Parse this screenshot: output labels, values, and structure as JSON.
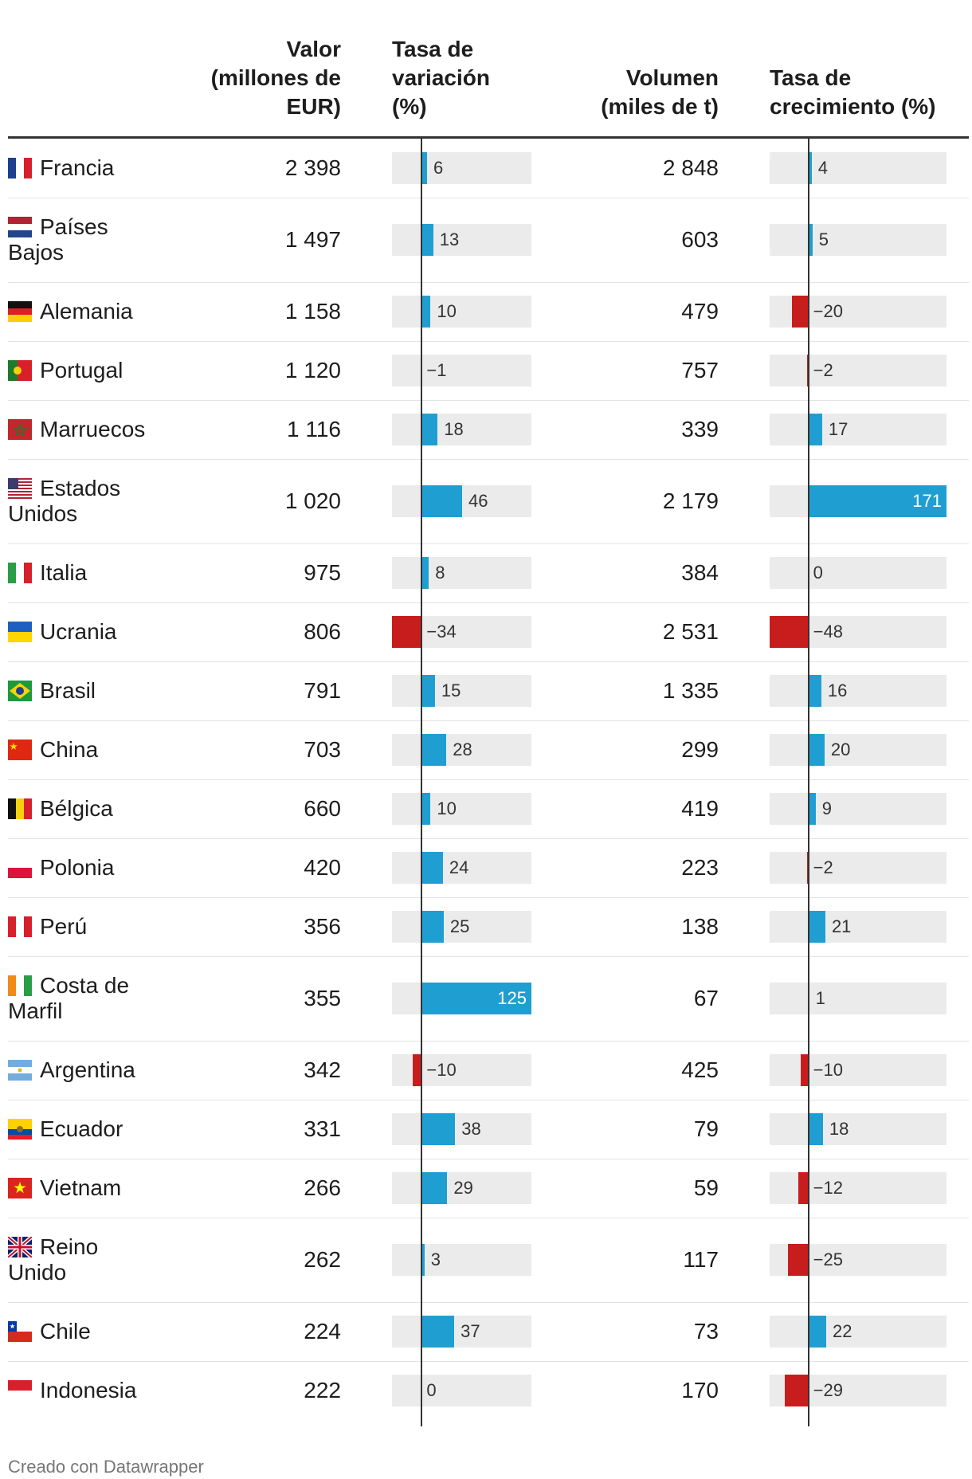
{
  "chart_data": {
    "type": "table",
    "columns": [
      {
        "key": "country",
        "label": ""
      },
      {
        "key": "valor",
        "label_lines": [
          "Valor",
          "(millones de",
          "EUR)"
        ]
      },
      {
        "key": "tasa_var",
        "label_lines": [
          "Tasa de",
          "variación",
          "(%)"
        ]
      },
      {
        "key": "volumen",
        "label_lines": [
          "Volumen",
          "(miles de t)"
        ]
      },
      {
        "key": "tasa_crec",
        "label_lines": [
          "Tasa de",
          "crecimiento (%)"
        ]
      }
    ],
    "colors": {
      "positive": "#1f9fd1",
      "negative": "#c71e1d",
      "track": "#ebebeb"
    },
    "tasa_var_range": [
      -34,
      125
    ],
    "tasa_crec_range": [
      -48,
      171
    ],
    "rows": [
      {
        "country": "Francia",
        "name_lines": [
          "Francia"
        ],
        "flag": "flag-france",
        "valor": "2 398",
        "tasa_var": 6,
        "tasa_var_label": "6",
        "volumen": "2 848",
        "tasa_crec": 4,
        "tasa_crec_label": "4"
      },
      {
        "country": "Países Bajos",
        "name_lines": [
          "Países",
          "Bajos"
        ],
        "flag": "flag-netherlands",
        "valor": "1 497",
        "tasa_var": 13,
        "tasa_var_label": "13",
        "volumen": "603",
        "tasa_crec": 5,
        "tasa_crec_label": "5"
      },
      {
        "country": "Alemania",
        "name_lines": [
          "Alemania"
        ],
        "flag": "flag-germany",
        "valor": "1 158",
        "tasa_var": 10,
        "tasa_var_label": "10",
        "volumen": "479",
        "tasa_crec": -20,
        "tasa_crec_label": "−20"
      },
      {
        "country": "Portugal",
        "name_lines": [
          "Portugal"
        ],
        "flag": "flag-portugal",
        "valor": "1 120",
        "tasa_var": -1,
        "tasa_var_label": "−1",
        "volumen": "757",
        "tasa_crec": -2,
        "tasa_crec_label": "−2"
      },
      {
        "country": "Marruecos",
        "name_lines": [
          "Marruecos"
        ],
        "flag": "flag-morocco",
        "valor": "1 116",
        "tasa_var": 18,
        "tasa_var_label": "18",
        "volumen": "339",
        "tasa_crec": 17,
        "tasa_crec_label": "17"
      },
      {
        "country": "Estados Unidos",
        "name_lines": [
          "Estados",
          "Unidos"
        ],
        "flag": "flag-usa",
        "valor": "1 020",
        "tasa_var": 46,
        "tasa_var_label": "46",
        "volumen": "2 179",
        "tasa_crec": 171,
        "tasa_crec_label": "171"
      },
      {
        "country": "Italia",
        "name_lines": [
          "Italia"
        ],
        "flag": "flag-italy",
        "valor": "975",
        "tasa_var": 8,
        "tasa_var_label": "8",
        "volumen": "384",
        "tasa_crec": 0,
        "tasa_crec_label": "0"
      },
      {
        "country": "Ucrania",
        "name_lines": [
          "Ucrania"
        ],
        "flag": "flag-ukraine",
        "valor": "806",
        "tasa_var": -34,
        "tasa_var_label": "−34",
        "volumen": "2 531",
        "tasa_crec": -48,
        "tasa_crec_label": "−48"
      },
      {
        "country": "Brasil",
        "name_lines": [
          "Brasil"
        ],
        "flag": "flag-brazil",
        "valor": "791",
        "tasa_var": 15,
        "tasa_var_label": "15",
        "volumen": "1 335",
        "tasa_crec": 16,
        "tasa_crec_label": "16"
      },
      {
        "country": "China",
        "name_lines": [
          "China"
        ],
        "flag": "flag-china",
        "valor": "703",
        "tasa_var": 28,
        "tasa_var_label": "28",
        "volumen": "299",
        "tasa_crec": 20,
        "tasa_crec_label": "20"
      },
      {
        "country": "Bélgica",
        "name_lines": [
          "Bélgica"
        ],
        "flag": "flag-belgium",
        "valor": "660",
        "tasa_var": 10,
        "tasa_var_label": "10",
        "volumen": "419",
        "tasa_crec": 9,
        "tasa_crec_label": "9"
      },
      {
        "country": "Polonia",
        "name_lines": [
          "Polonia"
        ],
        "flag": "flag-poland",
        "valor": "420",
        "tasa_var": 24,
        "tasa_var_label": "24",
        "volumen": "223",
        "tasa_crec": -2,
        "tasa_crec_label": "−2"
      },
      {
        "country": "Perú",
        "name_lines": [
          "Perú"
        ],
        "flag": "flag-peru",
        "valor": "356",
        "tasa_var": 25,
        "tasa_var_label": "25",
        "volumen": "138",
        "tasa_crec": 21,
        "tasa_crec_label": "21"
      },
      {
        "country": "Costa de Marfil",
        "name_lines": [
          "Costa de",
          "Marfil"
        ],
        "flag": "flag-ivory-coast",
        "valor": "355",
        "tasa_var": 125,
        "tasa_var_label": "125",
        "volumen": "67",
        "tasa_crec": 1,
        "tasa_crec_label": "1"
      },
      {
        "country": "Argentina",
        "name_lines": [
          "Argentina"
        ],
        "flag": "flag-argentina",
        "valor": "342",
        "tasa_var": -10,
        "tasa_var_label": "−10",
        "volumen": "425",
        "tasa_crec": -10,
        "tasa_crec_label": "−10"
      },
      {
        "country": "Ecuador",
        "name_lines": [
          "Ecuador"
        ],
        "flag": "flag-ecuador",
        "valor": "331",
        "tasa_var": 38,
        "tasa_var_label": "38",
        "volumen": "79",
        "tasa_crec": 18,
        "tasa_crec_label": "18"
      },
      {
        "country": "Vietnam",
        "name_lines": [
          "Vietnam"
        ],
        "flag": "flag-vietnam",
        "valor": "266",
        "tasa_var": 29,
        "tasa_var_label": "29",
        "volumen": "59",
        "tasa_crec": -12,
        "tasa_crec_label": "−12"
      },
      {
        "country": "Reino Unido",
        "name_lines": [
          "Reino",
          "Unido"
        ],
        "flag": "flag-uk",
        "valor": "262",
        "tasa_var": 3,
        "tasa_var_label": "3",
        "volumen": "117",
        "tasa_crec": -25,
        "tasa_crec_label": "−25"
      },
      {
        "country": "Chile",
        "name_lines": [
          "Chile"
        ],
        "flag": "flag-chile",
        "valor": "224",
        "tasa_var": 37,
        "tasa_var_label": "37",
        "volumen": "73",
        "tasa_crec": 22,
        "tasa_crec_label": "22"
      },
      {
        "country": "Indonesia",
        "name_lines": [
          "Indonesia"
        ],
        "flag": "flag-indonesia",
        "valor": "222",
        "tasa_var": 0,
        "tasa_var_label": "0",
        "volumen": "170",
        "tasa_crec": -29,
        "tasa_crec_label": "−29"
      }
    ]
  },
  "footer": "Creado con Datawrapper"
}
